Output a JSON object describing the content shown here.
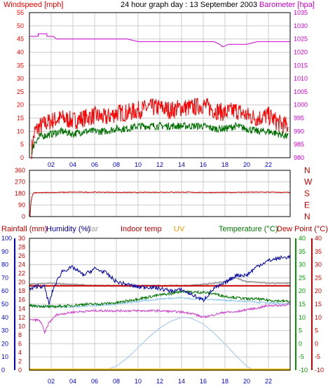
{
  "colors": {
    "windspeed": "#ff0000",
    "wind_avg": "#007000",
    "barometer": "#cc00cc",
    "direction": "#cc0000",
    "rainfall": "#cc0000",
    "humidity": "#0000aa",
    "solar": "#a0a0a0",
    "indoor_temp": "#cc0000",
    "uv": "#ff9900",
    "temperature": "#007700",
    "dew_point": "#cc0000",
    "windchill": "#cc44cc",
    "solar_curve": "#aaccee",
    "axis_blue": "#0000cc",
    "axis_green": "#009900",
    "axis_red": "#cc0000",
    "grid": "#cccccc",
    "frame": "#000000"
  },
  "header": {
    "windspeed_label": "Windspeed [mph]",
    "title": "24 hour graph day : 13 September 2003",
    "barometer_label": "Barometer [hpa]"
  },
  "direction_labels": [
    "N",
    "W",
    "S",
    "E",
    "N"
  ],
  "bottom_labels": {
    "rainfall": "Rainfall (mm)",
    "humidity": "Humidity (%)",
    "solar": "olar",
    "indoor_temp": "Indoor temp",
    "uv": "UV",
    "temperature": "Temperature (°C)",
    "dew_point": "Dew Point (°C)"
  },
  "chart_data": [
    {
      "type": "line",
      "x_ticks": [
        "02",
        "04",
        "06",
        "08",
        "10",
        "12",
        "14",
        "16",
        "18",
        "20",
        "22"
      ],
      "xlim": [
        0,
        24
      ],
      "y_left": {
        "label": "Windspeed [mph]",
        "ylim": [
          0,
          55
        ],
        "ticks": [
          0,
          5,
          10,
          15,
          20,
          25,
          30,
          35,
          40,
          45,
          50,
          55
        ]
      },
      "y_right": {
        "label": "Barometer [hpa]",
        "ylim": [
          980,
          1035
        ],
        "ticks": [
          980,
          985,
          990,
          995,
          1000,
          1005,
          1010,
          1015,
          1020,
          1025,
          1030,
          1035
        ]
      },
      "grid": true,
      "series": [
        {
          "name": "Windspeed [mph]",
          "axis": "left",
          "x": [
            0.2,
            0.5,
            1,
            2,
            3,
            4,
            5,
            6,
            7,
            8,
            9,
            10,
            11,
            12,
            13,
            14,
            15,
            16,
            17,
            18,
            19,
            20,
            21,
            22,
            23,
            23.8
          ],
          "y": [
            3,
            10,
            12,
            14,
            15,
            14,
            15,
            16,
            15,
            17,
            17,
            18,
            19,
            19,
            18,
            19,
            19,
            20,
            18,
            17,
            18,
            16,
            15,
            16,
            13,
            12
          ],
          "noise": 3.5
        },
        {
          "axis": "left",
          "x": [
            0.2,
            0.5,
            1,
            2,
            3,
            4,
            5,
            6,
            7,
            8,
            9,
            10,
            11,
            12,
            13,
            14,
            15,
            16,
            17,
            18,
            19,
            20,
            21,
            22,
            23,
            23.8
          ],
          "y": [
            2,
            6,
            8,
            9,
            10,
            9,
            10,
            10,
            10,
            11,
            11,
            12,
            12,
            12,
            12,
            12,
            12,
            12,
            11,
            11,
            12,
            11,
            10,
            10,
            9,
            8
          ],
          "noise": 1.4
        },
        {
          "name": "Barometer [hpa]",
          "axis": "right",
          "x": [
            0,
            0.8,
            0.81,
            1.6,
            1.61,
            2.2,
            2.5,
            4,
            5,
            6,
            7,
            8,
            9,
            10,
            11,
            12,
            13,
            14,
            15,
            16,
            17,
            17.5,
            17.8,
            18.3,
            19,
            20,
            21,
            22,
            23,
            24
          ],
          "y": [
            1026,
            1026,
            1027,
            1027,
            1026,
            1026,
            1025,
            1025,
            1025,
            1025,
            1025,
            1025,
            1025,
            1024,
            1024,
            1024,
            1024,
            1024,
            1024,
            1024,
            1024,
            1023,
            1022,
            1023,
            1023,
            1023,
            1024,
            1024,
            1024,
            1024
          ],
          "noise": 0
        }
      ]
    },
    {
      "type": "line",
      "x_ticks": [
        "02",
        "04",
        "06",
        "08",
        "10",
        "12",
        "14",
        "16",
        "18",
        "20",
        "22"
      ],
      "xlim": [
        0,
        24
      ],
      "y_left": {
        "ylim": [
          0,
          360
        ],
        "ticks": [
          0,
          90,
          180,
          270,
          360
        ]
      },
      "y_right": {
        "labels": [
          "N",
          "W",
          "S",
          "E",
          "N"
        ]
      },
      "grid": true,
      "series": [
        {
          "name": "Wind direction",
          "x": [
            0,
            0.05,
            0.15,
            0.25,
            0.4,
            2,
            4,
            6,
            8,
            10,
            12,
            14,
            16,
            18,
            20,
            22,
            24
          ],
          "y": [
            5,
            0,
            120,
            160,
            185,
            188,
            190,
            190,
            189,
            188,
            190,
            190,
            188,
            188,
            190,
            190,
            188
          ],
          "noise": 3
        }
      ]
    },
    {
      "type": "line",
      "x_ticks": [
        "02",
        "04",
        "06",
        "08",
        "10",
        "12",
        "14",
        "16",
        "18",
        "20",
        "22"
      ],
      "xlim": [
        0,
        24
      ],
      "axes": {
        "humidity": {
          "ylim": [
            0,
            100
          ],
          "ticks": [
            0,
            10,
            20,
            30,
            40,
            50,
            60,
            70,
            80,
            90,
            100
          ]
        },
        "rainfall": {
          "ylim": [
            0,
            30
          ],
          "ticks": [
            0,
            2,
            4,
            6,
            8,
            10,
            12,
            14,
            16,
            18,
            20,
            22,
            24,
            26,
            28,
            30
          ]
        },
        "temperature": {
          "ylim": [
            -10,
            40
          ],
          "ticks": [
            -10,
            -5,
            0,
            5,
            10,
            15,
            20,
            25,
            30,
            35,
            40
          ]
        },
        "dew_point": {
          "ylim": [
            -10,
            40
          ],
          "ticks": [
            -10,
            -5,
            0,
            5,
            10,
            15,
            20,
            25,
            30,
            35,
            40
          ]
        }
      },
      "grid": true,
      "series": [
        {
          "name": "Humidity (%)",
          "axis": "humidity",
          "x": [
            0,
            0.8,
            1.4,
            1.8,
            2.2,
            3,
            4,
            5,
            6,
            7,
            8,
            9,
            10,
            11,
            12,
            13,
            14,
            15,
            16,
            17,
            18,
            19,
            20,
            21,
            22,
            23,
            24
          ],
          "y": [
            61,
            64,
            63,
            50,
            62,
            75,
            78,
            72,
            77,
            74,
            67,
            65,
            63,
            63,
            62,
            60,
            61,
            57,
            53,
            62,
            66,
            72,
            72,
            79,
            83,
            85,
            86
          ],
          "noise": 1.5
        },
        {
          "name": "olar",
          "axis": "humidity",
          "x": [
            0,
            2,
            4,
            6,
            8,
            10,
            12,
            14,
            16,
            18,
            19,
            20,
            22,
            24
          ],
          "y": [
            65,
            66,
            65,
            64,
            64,
            64,
            64,
            64,
            65,
            67,
            70,
            67,
            66,
            66
          ],
          "noise": 0.4
        },
        {
          "name": "Indoor temp",
          "axis": "temperature",
          "x": [
            0,
            24
          ],
          "y": [
            22,
            22
          ],
          "noise": 0
        },
        {
          "name": "Temperature (°C)",
          "axis": "temperature",
          "x": [
            0,
            2,
            4,
            5,
            6,
            8,
            10,
            12,
            13,
            14,
            15,
            16,
            17,
            18,
            19,
            20,
            21,
            22,
            24
          ],
          "y": [
            14.5,
            14,
            14.5,
            15,
            15,
            15.5,
            17,
            18.5,
            19,
            20,
            19.5,
            19.5,
            19,
            18,
            17.5,
            17,
            17,
            16.5,
            16
          ],
          "noise": 0.5
        },
        {
          "name": "Dew Point (°C)",
          "axis": "temperature",
          "x": [
            0,
            0.8,
            1.1,
            1.4,
            1.8,
            2.5,
            4,
            6,
            8,
            10,
            12,
            14,
            15,
            16,
            17,
            18,
            19,
            20,
            21,
            22,
            23,
            24
          ],
          "y": [
            9,
            9,
            8,
            4,
            8,
            11,
            12,
            12.5,
            12.5,
            12.5,
            12.5,
            12,
            11.5,
            10,
            11,
            12,
            12,
            13,
            13.5,
            14.5,
            14.5,
            15
          ],
          "noise": 0.4
        },
        {
          "axis": "temperature",
          "x": [
            0,
            2,
            4,
            6,
            8,
            10,
            12,
            14,
            15,
            16,
            18,
            20,
            22,
            24
          ],
          "y": [
            14.5,
            14,
            14,
            14.5,
            15,
            16,
            17,
            17.5,
            17,
            17,
            16.5,
            16,
            15.5,
            15
          ],
          "noise": 0.3
        },
        {
          "axis": "humidity",
          "x": [
            0,
            6.3,
            7,
            8,
            9,
            10,
            11,
            12,
            13,
            14,
            14.5,
            15,
            16,
            17,
            18,
            19,
            20,
            20.6,
            24
          ],
          "y": [
            0,
            0,
            0,
            3,
            9,
            17,
            25,
            32,
            37,
            40,
            40,
            39,
            35,
            28,
            20,
            11,
            3,
            0,
            0
          ],
          "noise": 0
        },
        {
          "name": "UV",
          "axis": "humidity",
          "x": [
            0,
            24
          ],
          "y": [
            0.3,
            0.3
          ],
          "noise": 0
        }
      ]
    }
  ]
}
